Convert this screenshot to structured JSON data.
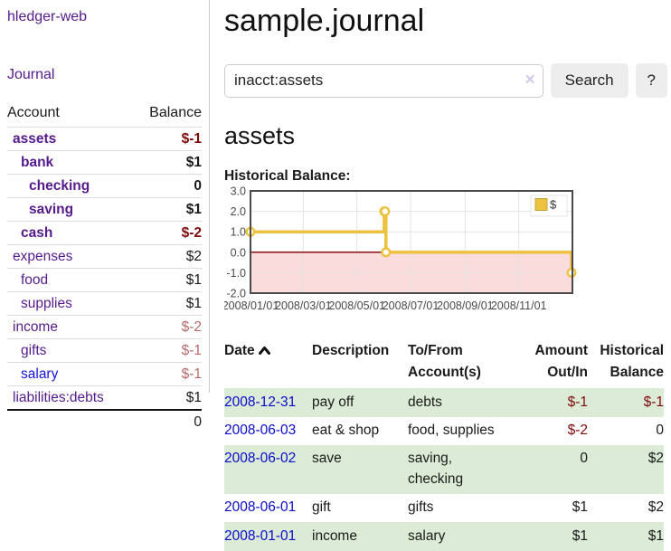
{
  "app": {
    "title": "hledger-web"
  },
  "sidebar": {
    "nav": [
      {
        "label": "Journal"
      }
    ],
    "accounts_table": {
      "headers": {
        "account": "Account",
        "balance": "Balance"
      },
      "rows": [
        {
          "name": "assets",
          "depth": 1,
          "balance": "$-1",
          "bold": true,
          "neg": "strong"
        },
        {
          "name": "bank",
          "depth": 2,
          "balance": "$1",
          "bold": true
        },
        {
          "name": "checking",
          "depth": 3,
          "balance": "0",
          "bold": true
        },
        {
          "name": "saving",
          "depth": 3,
          "balance": "$1",
          "bold": true
        },
        {
          "name": "cash",
          "depth": 2,
          "balance": "$-2",
          "bold": true,
          "neg": "strong"
        },
        {
          "name": "expenses",
          "depth": 1,
          "balance": "$2"
        },
        {
          "name": "food",
          "depth": 2,
          "balance": "$1"
        },
        {
          "name": "supplies",
          "depth": 2,
          "balance": "$1"
        },
        {
          "name": "income",
          "depth": 1,
          "balance": "$-2",
          "neg": "soft"
        },
        {
          "name": "gifts",
          "depth": 2,
          "balance": "$-1",
          "neg": "soft"
        },
        {
          "name": "salary",
          "depth": 2,
          "balance": "$-1",
          "neg": "soft",
          "blue": true
        },
        {
          "name": "liabilities:debts",
          "depth": 1,
          "balance": "$1"
        }
      ],
      "total": "0"
    }
  },
  "header": {
    "title": "sample.journal"
  },
  "search": {
    "value": "inacct:assets",
    "clear_icon": "×",
    "button_label": "Search",
    "help_label": "?"
  },
  "account_page": {
    "title": "assets"
  },
  "chart_data": {
    "type": "line",
    "title": "Historical Balance:",
    "step": true,
    "series": [
      {
        "name": "$",
        "color": "#edc240",
        "points": [
          [
            "2008-01-01",
            1
          ],
          [
            "2008-06-01",
            2
          ],
          [
            "2008-06-02",
            2
          ],
          [
            "2008-06-03",
            0
          ],
          [
            "2008-12-31",
            -1
          ]
        ]
      }
    ],
    "ylim": [
      -2,
      3
    ],
    "yticks": [
      3.0,
      2.0,
      1.0,
      0.0,
      -1.0,
      -2.0
    ],
    "xrange": [
      "2008-01-01",
      "2009-01-01"
    ],
    "xticks": [
      "2008/01/01",
      "2008/03/01",
      "2008/05/01",
      "2008/07/01",
      "2008/09/01",
      "2008/11/01"
    ],
    "grid": true,
    "legend_position": "top-right",
    "negative_fill": "#fadcdc",
    "zero_line_color": "#8b1010",
    "tick_label_color": "#4a4a4a"
  },
  "transactions": {
    "columns": [
      {
        "label": "Date",
        "sort": "asc"
      },
      {
        "label": "Description"
      },
      {
        "label": "To/From Account(s)"
      },
      {
        "label": "Amount Out/In"
      },
      {
        "label": "Historical Balance"
      }
    ],
    "rows": [
      {
        "date": "2008-12-31",
        "description": "pay off",
        "accounts": "debts",
        "amount": "$-1",
        "balance": "$-1",
        "amount_neg": true,
        "balance_neg": true
      },
      {
        "date": "2008-06-03",
        "description": "eat & shop",
        "accounts": "food, supplies",
        "amount": "$-2",
        "balance": "0",
        "amount_neg": true
      },
      {
        "date": "2008-06-02",
        "description": "save",
        "accounts": "saving,\nchecking",
        "amount": "0",
        "balance": "$2"
      },
      {
        "date": "2008-06-01",
        "description": "gift",
        "accounts": "gifts",
        "amount": "$1",
        "balance": "$2"
      },
      {
        "date": "2008-01-01",
        "description": "income",
        "accounts": "salary",
        "amount": "$1",
        "balance": "$1"
      }
    ]
  },
  "colors": {
    "link_visited": "#551a8b",
    "link_unvisited": "#1515e0",
    "date_link": "#0b0bcc",
    "negative_strong": "#7f0a0a",
    "negative_soft": "#b86a6a",
    "row_stripe_green": "#dcebd6",
    "chart_line": "#edc240"
  }
}
